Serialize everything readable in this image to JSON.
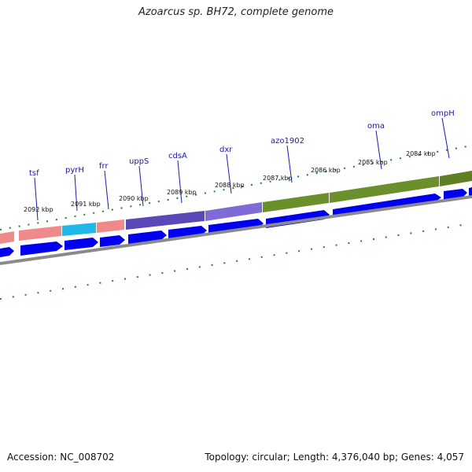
{
  "title": "Azoarcus sp. BH72, complete genome",
  "footer": {
    "accession": "Accession: NC_008702",
    "summary": "Topology: circular; Length: 4,376,040 bp; Genes: 4,057"
  },
  "ticks": [
    {
      "label": "2092 kbp"
    },
    {
      "label": "2091 kbp"
    },
    {
      "label": "2090 kbp"
    },
    {
      "label": "2089 kbp"
    },
    {
      "label": "2088 kbp"
    },
    {
      "label": "2087 kbp"
    },
    {
      "label": "2086 kbp"
    },
    {
      "label": "2085 kbp"
    },
    {
      "label": "2084 kbp"
    }
  ],
  "genes": [
    {
      "name": "tsf",
      "color": "#f08a8a"
    },
    {
      "name": "pyrH",
      "color": "#1fb8e8"
    },
    {
      "name": "frr",
      "color": "#f08a8a"
    },
    {
      "name": "uppS",
      "color": "#6a55c8"
    },
    {
      "name": "cdsA",
      "color": "#6a55c8"
    },
    {
      "name": "dxr",
      "color": "#7f6ad6"
    },
    {
      "name": "azo1902",
      "color": "#6b8f2a"
    },
    {
      "name": "oma",
      "color": "#6b8f2a"
    },
    {
      "name": "ompH",
      "color": "#6b8f2a"
    }
  ],
  "colors": {
    "arrow": "#0000ee",
    "backbone": "#888888",
    "tick": "#1a8a1a",
    "label_line": "#1a1ab0"
  }
}
